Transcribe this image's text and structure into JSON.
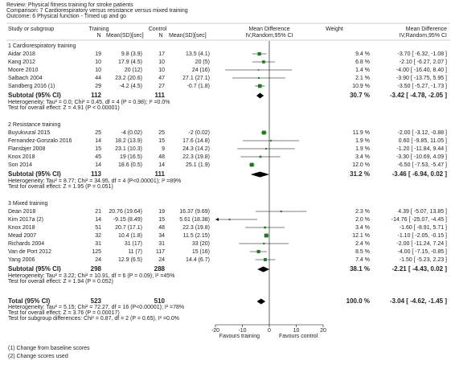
{
  "chart_data": {
    "type": "forest",
    "review": "Review:   Physical fitness training for stroke patients",
    "comparison": "Comparison:   7 Cardiorespiratory versus resistance versus mixed training",
    "outcome": "Outcome:   6 Physical function - Timed up and go",
    "columns": {
      "study": "Study or subgroup",
      "training": "Training",
      "training_n": "N",
      "training_mean": "Mean(SD)[sec]",
      "control": "Control",
      "control_n": "N",
      "control_mean": "Mean(SD)[sec]",
      "plot_title": "Mean Difference",
      "plot_method": "IV,Random,95% CI",
      "weight": "Weight",
      "md_title": "Mean Difference",
      "md_method": "IV,Random,95% CI"
    },
    "xlim": [
      -20,
      20
    ],
    "xticks": [
      -20,
      -10,
      0,
      10,
      20
    ],
    "favours_left": "Favours training",
    "favours_right": "Favours control",
    "color": "#1f7a1f",
    "subgroups": [
      {
        "name": "1 Cardiorespiratory training",
        "studies": [
          {
            "name": "Aidar 2018",
            "tn": 19,
            "tm": "9.8 (3.9)",
            "cn": 17,
            "cm": "13.5 (4.1)",
            "weight": 9.4,
            "weight_label": "9.4 %",
            "md": -3.7,
            "ci_low": -6.32,
            "ci_high": -1.08,
            "md_label": "-3.70 [ -6.32, -1.08 ]"
          },
          {
            "name": "Kang 2012",
            "tn": 10,
            "tm": "17.9 (4.5)",
            "cn": 10,
            "cm": "20 (5)",
            "weight": 6.8,
            "weight_label": "6.8 %",
            "md": -2.1,
            "ci_low": -6.27,
            "ci_high": 2.07,
            "md_label": "-2.10 [ -6.27, 2.07 ]"
          },
          {
            "name": "Moore 2010",
            "tn": 10,
            "tm": "20 (12)",
            "cn": 10,
            "cm": "24 (16)",
            "weight": 1.4,
            "weight_label": "1.4 %",
            "md": -4.0,
            "ci_low": -16.4,
            "ci_high": 8.4,
            "md_label": "-4.00 [ -16.40, 8.40 ]"
          },
          {
            "name": "Salbach 2004",
            "tn": 44,
            "tm": "23.2 (20.6)",
            "cn": 47,
            "cm": "27.1 (27.1)",
            "weight": 2.1,
            "weight_label": "2.1 %",
            "md": -3.9,
            "ci_low": -13.75,
            "ci_high": 5.95,
            "md_label": "-3.90 [ -13.75, 5.95 ]"
          },
          {
            "name": "Sandberg 2016 (1)",
            "tn": 29,
            "tm": "-4.2 (4.5)",
            "cn": 27,
            "cm": "-0.7 (1.8)",
            "weight": 10.9,
            "weight_label": "10.9 %",
            "md": -3.5,
            "ci_low": -5.27,
            "ci_high": -1.73,
            "md_label": "-3.50 [ -5.27, -1.73 ]"
          }
        ],
        "subtotal": {
          "name": "Subtotal (95% CI)",
          "tn": 112,
          "cn": 111,
          "weight": 30.7,
          "weight_label": "30.7 %",
          "md": -3.42,
          "ci_low": -4.78,
          "ci_high": -2.05,
          "md_label": "-3.42 [ -4.78, -2.05 ]"
        },
        "heterogeneity": "Heterogeneity: Tau² = 0.0; Chi² = 0.45, df = 4 (P = 0.98); I² =0.0%",
        "overall": "Test for overall effect: Z = 4.91 (P < 0.00001)"
      },
      {
        "name": "2 Resistance training",
        "studies": [
          {
            "name": "Buyukvural 2015",
            "tn": 25,
            "tm": "-4 (0.02)",
            "cn": 25,
            "cm": "-2 (0.02)",
            "weight": 11.9,
            "weight_label": "11.9 %",
            "md": -2.0,
            "ci_low": -3.12,
            "ci_high": -0.88,
            "md_label": "-2.00 [ -3.12, -0.88 ]"
          },
          {
            "name": "Fernandez-Gonzalo 2016",
            "tn": 14,
            "tm": "18.2 (13.9)",
            "cn": 15,
            "cm": "17.6 (14.8)",
            "weight": 1.9,
            "weight_label": "1.9 %",
            "md": 0.6,
            "ci_low": -9.85,
            "ci_high": 11.05,
            "md_label": "0.60 [ -9.85, 11.05 ]"
          },
          {
            "name": "Flansbjer 2008",
            "tn": 15,
            "tm": "23.1 (10.3)",
            "cn": 9,
            "cm": "24.3 (14.2)",
            "weight": 1.9,
            "weight_label": "1.9 %",
            "md": -1.2,
            "ci_low": -11.84,
            "ci_high": 9.44,
            "md_label": "-1.20 [ -11.84, 9.44 ]"
          },
          {
            "name": "Knox 2018",
            "tn": 45,
            "tm": "19 (16.5)",
            "cn": 48,
            "cm": "22.3 (19.8)",
            "weight": 3.4,
            "weight_label": "3.4 %",
            "md": -3.3,
            "ci_low": -10.69,
            "ci_high": 4.09,
            "md_label": "-3.30 [ -10.69, 4.09 ]"
          },
          {
            "name": "Son 2014",
            "tn": 14,
            "tm": "18.6 (0.5)",
            "cn": 14,
            "cm": "25.1 (1.9)",
            "weight": 12.0,
            "weight_label": "12.0 %",
            "md": -6.5,
            "ci_low": -7.53,
            "ci_high": -5.47,
            "md_label": "-6.50 [ -7.53, -5.47 ]"
          }
        ],
        "subtotal": {
          "name": "Subtotal (95% CI)",
          "tn": 113,
          "cn": 111,
          "weight": 31.2,
          "weight_label": "31.2 %",
          "md": -3.46,
          "ci_low": -6.94,
          "ci_high": 0.02,
          "md_label": "-3.46 [ -6.94, 0.02 ]"
        },
        "heterogeneity": "Heterogeneity: Tau² = 8.77; Chi² = 34.95, df = 4 (P<0.00001); I² =89%",
        "overall": "Test for overall effect: Z = 1.95 (P = 0.051)"
      },
      {
        "name": "3 Mixed training",
        "studies": [
          {
            "name": "Dean 2018",
            "tn": 21,
            "tm": "20.76 (19.64)",
            "cn": 19,
            "cm": "16.37 (9.69)",
            "weight": 2.3,
            "weight_label": "2.3 %",
            "md": 4.39,
            "ci_low": -5.07,
            "ci_high": 13.85,
            "md_label": "4.39 [ -5.07, 13.85 ]"
          },
          {
            "name": "Kim 2017a (2)",
            "tn": 14,
            "tm": "-9.15 (8.49)",
            "cn": 15,
            "cm": "5.61 (18.38)",
            "weight": 2.0,
            "weight_label": "2.0 %",
            "md": -14.76,
            "ci_low": -25.07,
            "ci_high": -4.45,
            "md_label": "-14.76 [ -25.07, -4.45 ]"
          },
          {
            "name": "Knox 2018",
            "tn": 51,
            "tm": "20.7 (17.1)",
            "cn": 48,
            "cm": "22.3 (19.8)",
            "weight": 3.4,
            "weight_label": "3.4 %",
            "md": -1.6,
            "ci_low": -8.91,
            "ci_high": 5.71,
            "md_label": "-1.60 [ -8.91, 5.71 ]"
          },
          {
            "name": "Mead 2007",
            "tn": 32,
            "tm": "10.4 (1.8)",
            "cn": 34,
            "cm": "11.5 (2.15)",
            "weight": 12.1,
            "weight_label": "12.1 %",
            "md": -1.1,
            "ci_low": -2.05,
            "ci_high": -0.15,
            "md_label": "-1.10 [ -2.05, -0.15 ]"
          },
          {
            "name": "Richards 2004",
            "tn": 31,
            "tm": "31 (17)",
            "cn": 31,
            "cm": "33 (20)",
            "weight": 2.4,
            "weight_label": "2.4 %",
            "md": -2.0,
            "ci_low": -11.24,
            "ci_high": 7.24,
            "md_label": "-2.00 [ -11.24, 7.24 ]"
          },
          {
            "name": "Van de Port 2012",
            "tn": 125,
            "tm": "11 (7)",
            "cn": 117,
            "cm": "15 (16)",
            "weight": 8.5,
            "weight_label": "8.5 %",
            "md": -4.0,
            "ci_low": -7.15,
            "ci_high": -0.85,
            "md_label": "-4.00 [ -7.15, -0.85 ]"
          },
          {
            "name": "Yang 2006",
            "tn": 24,
            "tm": "12.9 (6.5)",
            "cn": 24,
            "cm": "14.4 (6.7)",
            "weight": 7.4,
            "weight_label": "7.4 %",
            "md": -1.5,
            "ci_low": -5.23,
            "ci_high": 2.23,
            "md_label": "-1.50 [ -5.23, 2.23 ]"
          }
        ],
        "subtotal": {
          "name": "Subtotal (95% CI)",
          "tn": 298,
          "cn": 288,
          "weight": 38.1,
          "weight_label": "38.1 %",
          "md": -2.21,
          "ci_low": -4.43,
          "ci_high": 0.02,
          "md_label": "-2.21 [ -4.43, 0.02 ]"
        },
        "heterogeneity": "Heterogeneity: Tau² = 3.22; Chi² = 10.91, df = 6 (P = 0.09); I² =45%",
        "overall": "Test for overall effect: Z = 1.94 (P = 0.052)"
      }
    ],
    "total": {
      "name": "Total (95% CI)",
      "tn": 523,
      "cn": 510,
      "weight": 100.0,
      "weight_label": "100.0 %",
      "md": -3.04,
      "ci_low": -4.62,
      "ci_high": -1.45,
      "md_label": "-3.04 [ -4.62, -1.45 ]"
    },
    "total_notes": [
      "Heterogeneity: Tau² = 5.15; Chi² = 72.27, df = 16 (P<0.00001); I² =78%",
      "Test for overall effect: Z = 3.76 (P = 0.00017)",
      "Test for subgroup differences: Chi² = 0.87, df = 2 (P = 0.65), I² =0.0%"
    ],
    "footnotes": [
      "(1) Change from baseline scores",
      "(2) Change scores used"
    ]
  }
}
